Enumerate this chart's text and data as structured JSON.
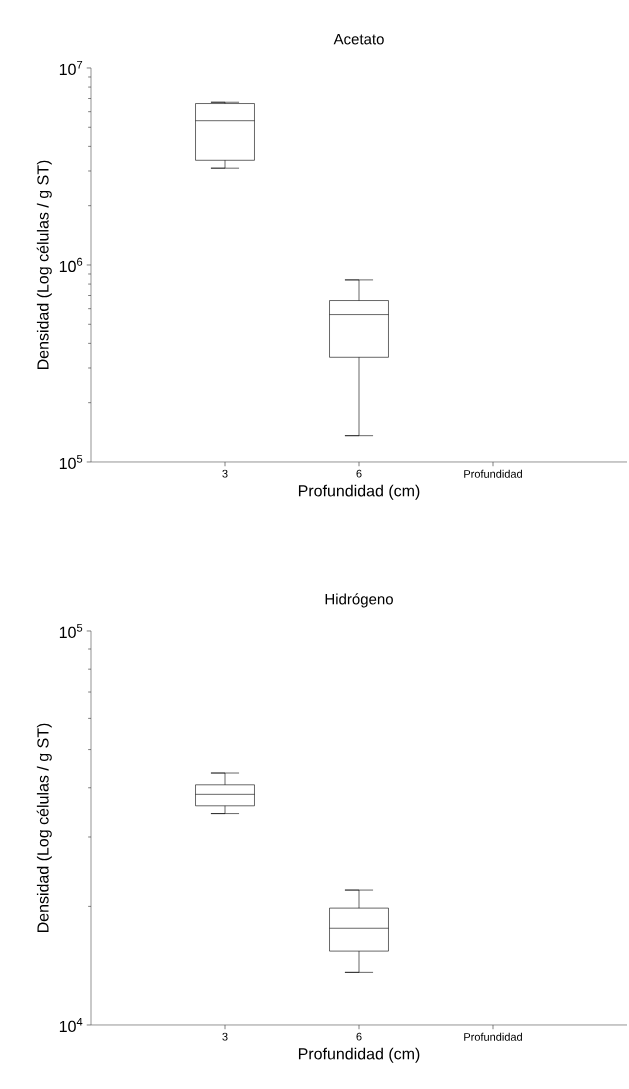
{
  "chart_data": [
    {
      "type": "box",
      "title": "Acetato",
      "xlabel": "Profundidad (cm)",
      "ylabel": "Densidad (Log células / g ST)",
      "log": true,
      "categories": [
        "3",
        "6",
        "Profundidad"
      ],
      "boxes": [
        {
          "low": 3100000,
          "q1": 3400000,
          "median": 5400000,
          "q3": 6600000,
          "high": 6700000
        },
        {
          "low": 136000,
          "q1": 340000,
          "median": 560000,
          "q3": 660000,
          "high": 840000
        },
        null
      ],
      "ylim": [
        100000,
        10000000
      ],
      "yticks": [
        {
          "value": 100000,
          "label": "10$^{5}$"
        },
        {
          "value": 1000000,
          "label": "10$^{6}$"
        },
        {
          "value": 10000000,
          "label": "10$^{7}$"
        }
      ]
    },
    {
      "type": "box",
      "title": "Hidrógeno",
      "xlabel": "Profundidad (cm)",
      "ylabel": "Densidad (Log células / g ST)",
      "log": true,
      "categories": [
        "3",
        "6",
        "Profundidad"
      ],
      "boxes": [
        {
          "low": 34400,
          "q1": 36000,
          "median": 38500,
          "q3": 40700,
          "high": 43600
        },
        {
          "low": 13600,
          "q1": 15400,
          "median": 17600,
          "q3": 19800,
          "high": 22000
        },
        null
      ],
      "ylim": [
        10000,
        100000
      ],
      "yticks": [
        {
          "value": 10000,
          "label": "10$^{4}$"
        },
        {
          "value": 100000,
          "label": "10$^{5}$"
        }
      ]
    }
  ]
}
